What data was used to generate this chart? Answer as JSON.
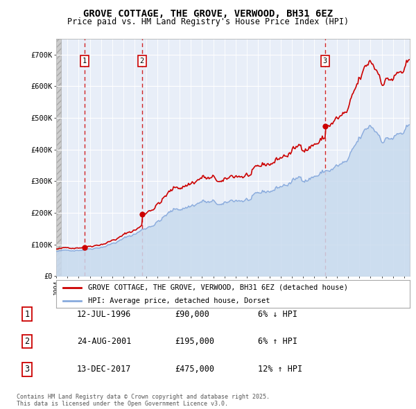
{
  "title": "GROVE COTTAGE, THE GROVE, VERWOOD, BH31 6EZ",
  "subtitle": "Price paid vs. HM Land Registry's House Price Index (HPI)",
  "legend_line1": "GROVE COTTAGE, THE GROVE, VERWOOD, BH31 6EZ (detached house)",
  "legend_line2": "HPI: Average price, detached house, Dorset",
  "transactions": [
    {
      "num": 1,
      "date": "12-JUL-1996",
      "price": 90000,
      "pct": "6%",
      "dir": "↓",
      "year": 1996.54
    },
    {
      "num": 2,
      "date": "24-AUG-2001",
      "price": 195000,
      "pct": "6%",
      "dir": "↑",
      "year": 2001.65
    },
    {
      "num": 3,
      "date": "13-DEC-2017",
      "price": 475000,
      "pct": "12%",
      "dir": "↑",
      "year": 2017.96
    }
  ],
  "footer": "Contains HM Land Registry data © Crown copyright and database right 2025.\nThis data is licensed under the Open Government Licence v3.0.",
  "xlim": [
    1994.0,
    2025.5
  ],
  "ylim": [
    0,
    750000
  ],
  "yticks": [
    0,
    100000,
    200000,
    300000,
    400000,
    500000,
    600000,
    700000
  ],
  "ytick_labels": [
    "£0",
    "£100K",
    "£200K",
    "£300K",
    "£400K",
    "£500K",
    "£600K",
    "£700K"
  ],
  "xticks": [
    1994,
    1995,
    1996,
    1997,
    1998,
    1999,
    2000,
    2001,
    2002,
    2003,
    2004,
    2005,
    2006,
    2007,
    2008,
    2009,
    2010,
    2011,
    2012,
    2013,
    2014,
    2015,
    2016,
    2017,
    2018,
    2019,
    2020,
    2021,
    2022,
    2023,
    2024,
    2025
  ],
  "hpi_line_color": "#88aadd",
  "hpi_fill_color": "#c8daee",
  "price_color": "#cc0000",
  "plot_bg": "#e8eef8",
  "grid_color": "#ffffff",
  "hatch_bg": "#d8d8d8"
}
